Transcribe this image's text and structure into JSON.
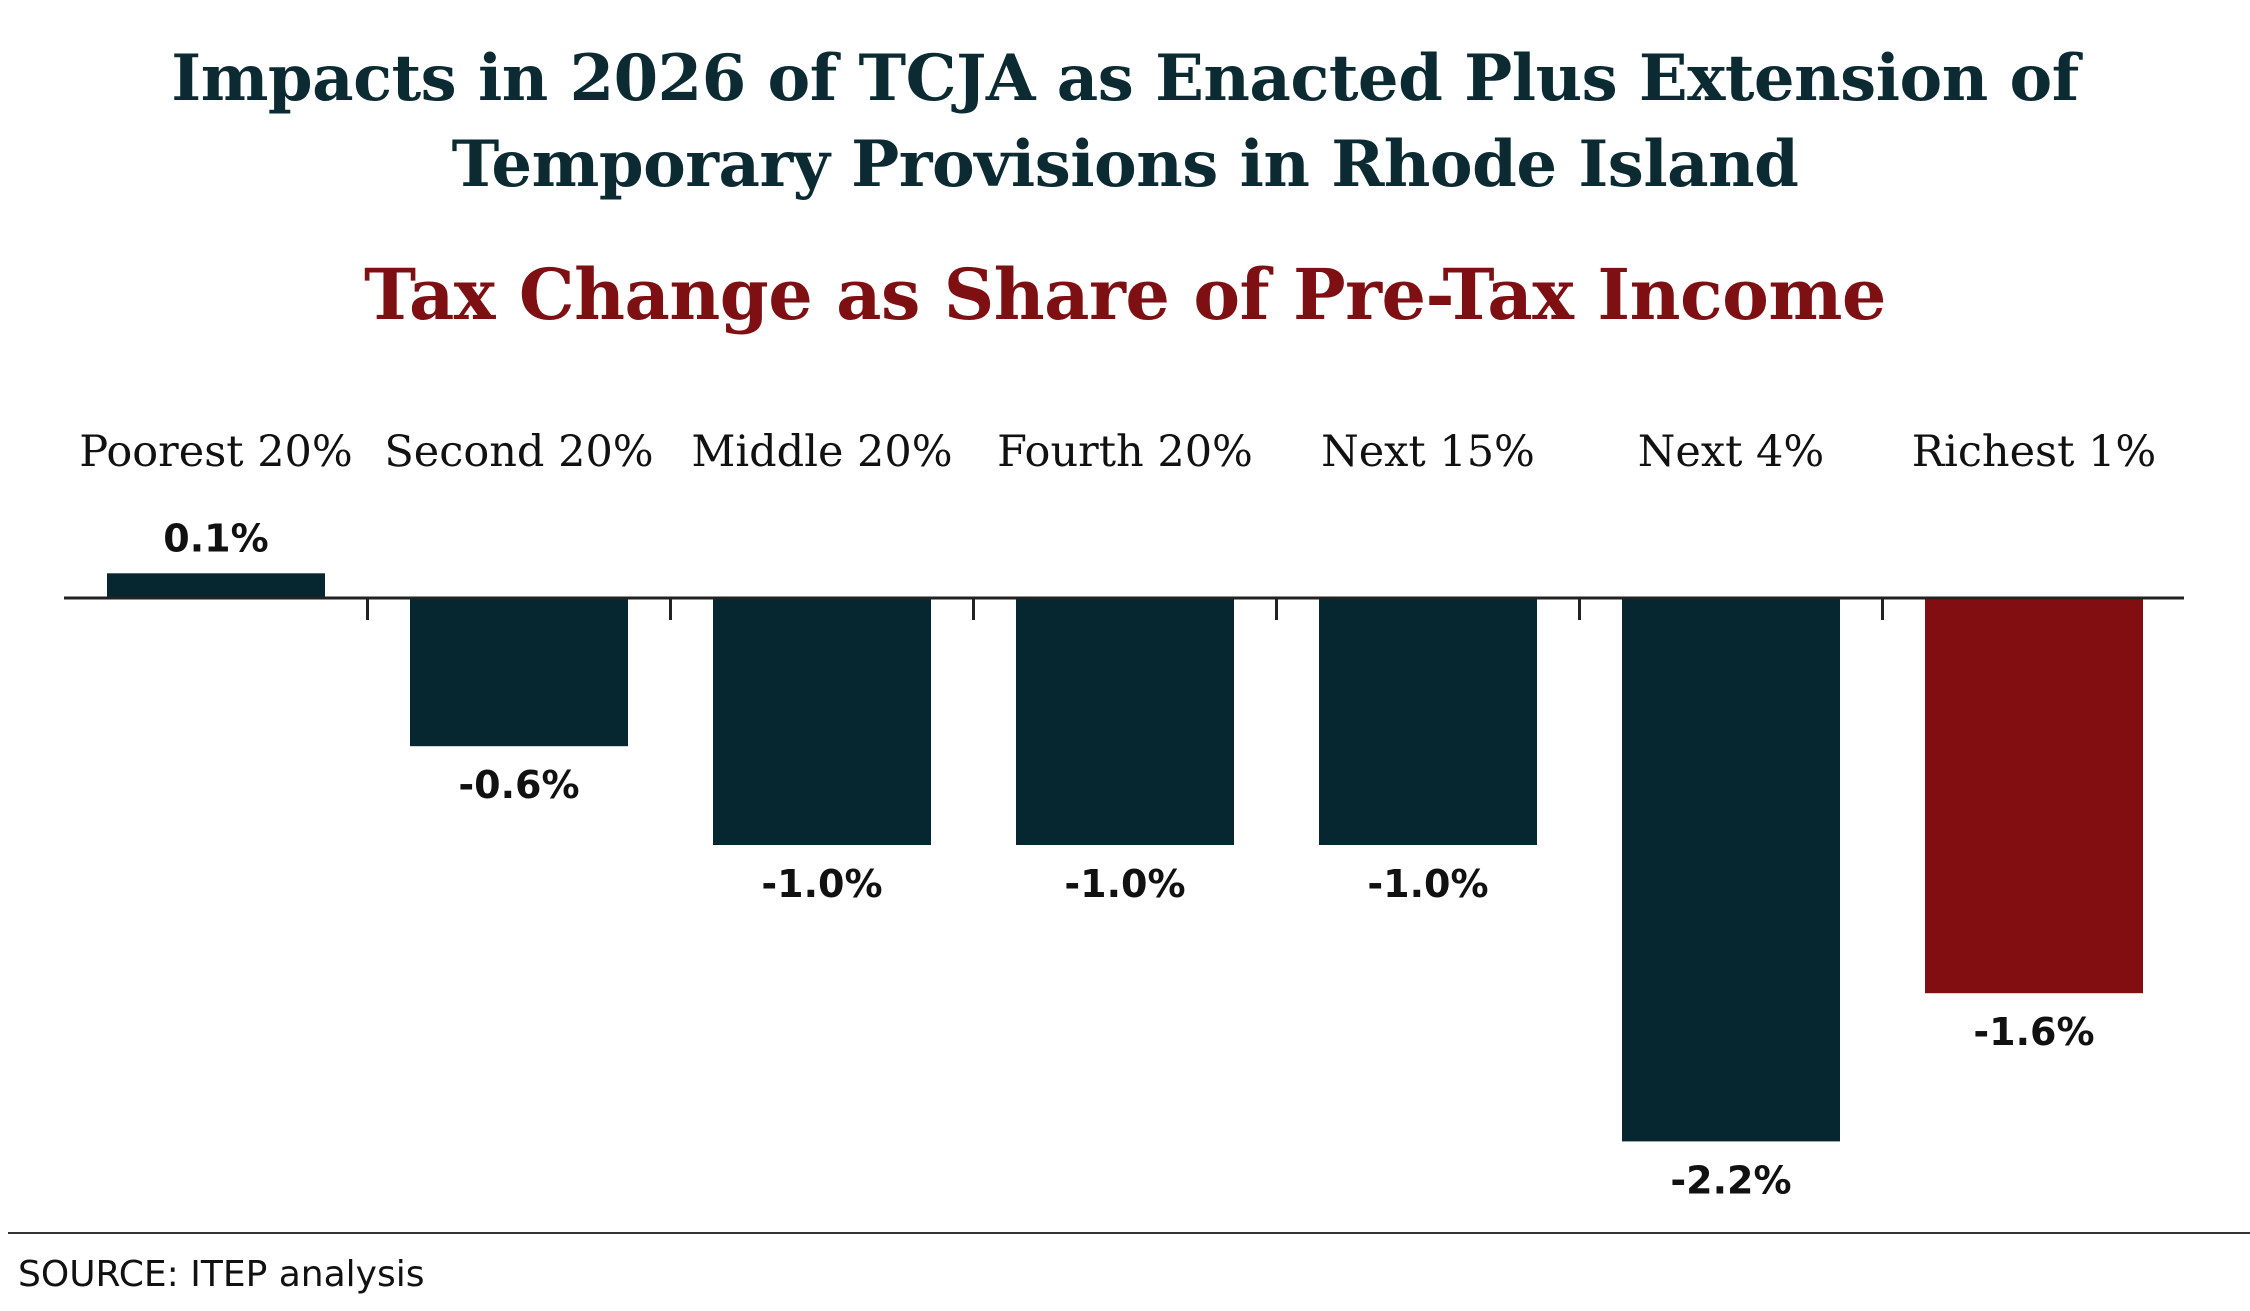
{
  "chart_data": {
    "type": "bar",
    "title_lines": [
      "Impacts in 2026 of TCJA as Enacted Plus Extension of",
      "Temporary Provisions in Rhode Island"
    ],
    "subtitle": "Tax Change as Share of Pre-Tax Income",
    "xlabel": "",
    "ylabel": "",
    "categories": [
      "Poorest 20%",
      "Second 20%",
      "Middle 20%",
      "Fourth 20%",
      "Next 15%",
      "Next 4%",
      "Richest 1%"
    ],
    "values": [
      0.1,
      -0.6,
      -1.0,
      -1.0,
      -1.0,
      -2.2,
      -1.6
    ],
    "value_labels": [
      "0.1%",
      "-0.6%",
      "-1.0%",
      "-1.0%",
      "-1.0%",
      "-2.2%",
      "-1.6%"
    ],
    "ylim": [
      -2.2,
      0.1
    ],
    "grid": false,
    "legend": "none",
    "colors": {
      "default_bar": "#072730",
      "highlight_bar": "#830e11",
      "title": "#0b2a31",
      "subtitle": "#7e0f12"
    },
    "highlight_index": 6
  },
  "source": "SOURCE: ITEP analysis"
}
